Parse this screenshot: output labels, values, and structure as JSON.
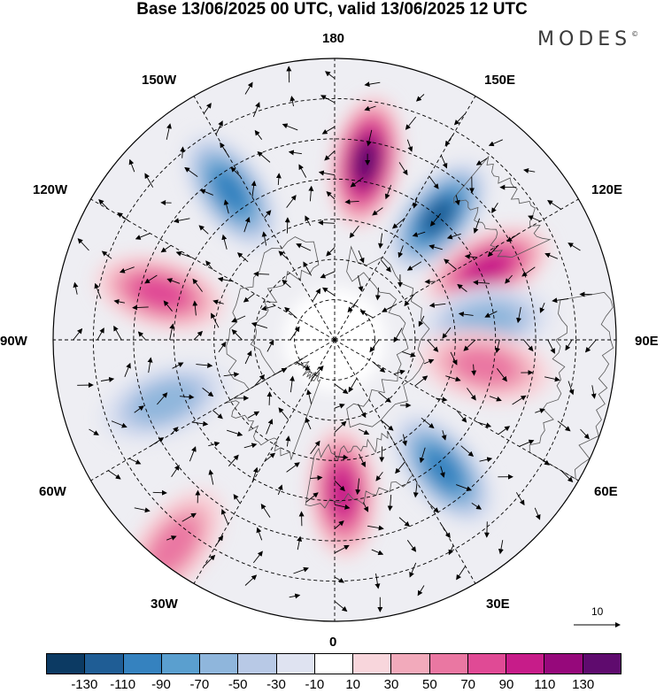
{
  "title": "Base 13/06/2025 00 UTC, valid 13/06/2025 12 UTC",
  "brand": "MODES",
  "brand_mark": "©",
  "longitude_labels": {
    "lon_180": "180",
    "lon_150E": "150E",
    "lon_120E": "120E",
    "lon_90E": "90E",
    "lon_60E": "60E",
    "lon_30E": "30E",
    "lon_0": "0",
    "lon_30W": "30W",
    "lon_60W": "60W",
    "lon_90W": "90W",
    "lon_120W": "120W",
    "lon_150W": "150W"
  },
  "reference_vector": {
    "label": "10"
  },
  "colorbar": {
    "colors": [
      "#0c3a63",
      "#1f5d95",
      "#3582bf",
      "#5a9fcf",
      "#8fb6dc",
      "#b8c9e6",
      "#dfe3f1",
      "#ffffff",
      "#f8d6dc",
      "#f2aabb",
      "#ea77a2",
      "#e04a95",
      "#c71c89",
      "#96087b",
      "#5f0b6e"
    ],
    "tick_labels": [
      "-130",
      "-110",
      "-90",
      "-70",
      "-50",
      "-30",
      "-10",
      "10",
      "30",
      "50",
      "70",
      "90",
      "110",
      "130"
    ]
  },
  "anomaly_centers": [
    {
      "lon": 170,
      "lat": 45,
      "value": 120
    },
    {
      "lon": 140,
      "lat": 50,
      "value": -100
    },
    {
      "lon": 115,
      "lat": 48,
      "value": 85
    },
    {
      "lon": 97,
      "lat": 52,
      "value": -45
    },
    {
      "lon": 80,
      "lat": 52,
      "value": 55
    },
    {
      "lon": 40,
      "lat": 48,
      "value": -85
    },
    {
      "lon": 3,
      "lat": 52,
      "value": 90
    },
    {
      "lon": -38,
      "lat": 25,
      "value": 40
    },
    {
      "lon": -70,
      "lat": 45,
      "value": -50
    },
    {
      "lon": -105,
      "lat": 45,
      "value": 65
    },
    {
      "lon": -145,
      "lat": 45,
      "value": -85
    }
  ]
}
